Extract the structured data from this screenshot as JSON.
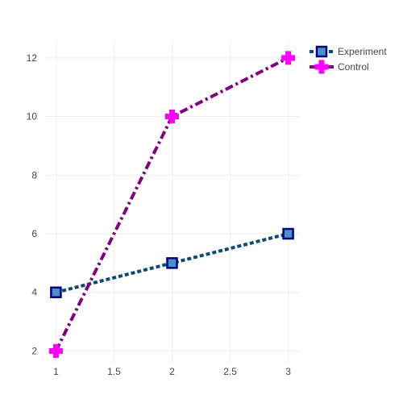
{
  "chart_data": {
    "type": "line",
    "title": "",
    "xlabel": "",
    "ylabel": "",
    "x": [
      1,
      2,
      3
    ],
    "xlim": [
      0.9,
      3.1
    ],
    "ylim": [
      1.6,
      12.6
    ],
    "x_ticks": [
      1,
      1.5,
      2,
      2.5,
      3
    ],
    "x_tick_labels": [
      "1",
      "1.5",
      "2",
      "2.5",
      "3"
    ],
    "y_ticks": [
      2,
      4,
      6,
      8,
      10,
      12
    ],
    "y_tick_labels": [
      "2",
      "4",
      "6",
      "8",
      "10",
      "12"
    ],
    "grid": true,
    "legend_position": "top-right",
    "series": [
      {
        "name": "Experiment",
        "values": [
          4,
          5,
          6
        ],
        "line_color": "#0c4a75",
        "line_style": "dot",
        "marker": "square",
        "marker_fill": "#4a90c8",
        "marker_edge": "#000080"
      },
      {
        "name": "Control",
        "values": [
          2,
          10,
          12
        ],
        "line_color": "#800080",
        "line_style": "dashdot",
        "marker": "cross",
        "marker_fill": "#ff00ff",
        "marker_edge": "#ff00ff"
      }
    ]
  }
}
